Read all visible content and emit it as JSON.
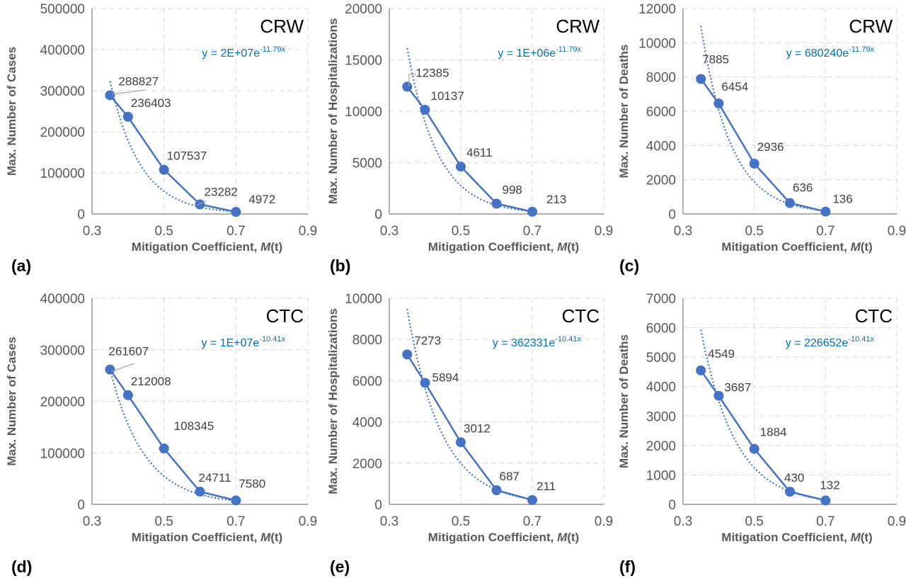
{
  "chart_data": [
    {
      "panel": "(a)",
      "type": "line",
      "corner_label": "CRW",
      "xlabel_pre": "Mitigation Coefficient, ",
      "xlabel_var": "M",
      "xlabel_post": "(t)",
      "ylabel": "Max. Number of Cases",
      "x": [
        0.35,
        0.4,
        0.5,
        0.6,
        0.7
      ],
      "values": [
        288827,
        236403,
        107537,
        23282,
        4972
      ],
      "labels": [
        "288827",
        "236403",
        "107537",
        "23282",
        "4972"
      ],
      "xlim": [
        0.3,
        0.9
      ],
      "xticks": [
        "0.3",
        "0.5",
        "0.7",
        "0.9"
      ],
      "ylim": [
        0,
        500000
      ],
      "yticks": [
        "0",
        "100000",
        "200000",
        "300000",
        "400000",
        "500000"
      ],
      "trendline": {
        "type": "exponential",
        "a": 20000000,
        "b": -11.79,
        "equation_main": "y = 2E+07e",
        "equation_exp": "-11.79x"
      },
      "grid": true
    },
    {
      "panel": "(b)",
      "type": "line",
      "corner_label": "CRW",
      "xlabel_pre": "Mitigation Coefficient, ",
      "xlabel_var": "M",
      "xlabel_post": "(t)",
      "ylabel": "Max. Number of Hospitalizations",
      "x": [
        0.35,
        0.4,
        0.5,
        0.6,
        0.7
      ],
      "values": [
        12385,
        10137,
        4611,
        998,
        213
      ],
      "labels": [
        "12385",
        "10137",
        "4611",
        "998",
        "213"
      ],
      "xlim": [
        0.3,
        0.9
      ],
      "xticks": [
        "0.3",
        "0.5",
        "0.7",
        "0.9"
      ],
      "ylim": [
        0,
        20000
      ],
      "yticks": [
        "0",
        "5000",
        "10000",
        "15000",
        "20000"
      ],
      "trendline": {
        "type": "exponential",
        "a": 1000000,
        "b": -11.79,
        "equation_main": "y = 1E+06e",
        "equation_exp": "-11.79x"
      },
      "grid": true
    },
    {
      "panel": "(c)",
      "type": "line",
      "corner_label": "CRW",
      "xlabel_pre": "Mitigation Coefficient, ",
      "xlabel_var": "M",
      "xlabel_post": "(t)",
      "ylabel": "Max. Number of Deaths",
      "x": [
        0.35,
        0.4,
        0.5,
        0.6,
        0.7
      ],
      "values": [
        7885,
        6454,
        2936,
        636,
        136
      ],
      "labels": [
        "7885",
        "6454",
        "2936",
        "636",
        "136"
      ],
      "xlim": [
        0.3,
        0.9
      ],
      "xticks": [
        "0.3",
        "0.5",
        "0.7",
        "0.9"
      ],
      "ylim": [
        0,
        12000
      ],
      "yticks": [
        "0",
        "2000",
        "4000",
        "6000",
        "8000",
        "10000",
        "12000"
      ],
      "trendline": {
        "type": "exponential",
        "a": 680240,
        "b": -11.79,
        "equation_main": "y = 680240e",
        "equation_exp": "-11.79x"
      },
      "grid": true
    },
    {
      "panel": "(d)",
      "type": "line",
      "corner_label": "CTC",
      "xlabel_pre": "Mitigation Coefficient, ",
      "xlabel_var": "M",
      "xlabel_post": "(t)",
      "ylabel": "Max. Number of Cases",
      "x": [
        0.35,
        0.4,
        0.5,
        0.6,
        0.7
      ],
      "values": [
        261607,
        212008,
        108345,
        24711,
        7580
      ],
      "labels": [
        "261607",
        "212008",
        "108345",
        "24711",
        "7580"
      ],
      "xlim": [
        0.3,
        0.9
      ],
      "xticks": [
        "0.3",
        "0.5",
        "0.7",
        "0.9"
      ],
      "ylim": [
        0,
        400000
      ],
      "yticks": [
        "0",
        "100000",
        "200000",
        "300000",
        "400000"
      ],
      "trendline": {
        "type": "exponential",
        "a": 10000000,
        "b": -10.41,
        "equation_main": "y = 1E+07e",
        "equation_exp": "-10.41x"
      },
      "grid": true
    },
    {
      "panel": "(e)",
      "type": "line",
      "corner_label": "CTC",
      "xlabel_pre": "Mitigation Coefficient, ",
      "xlabel_var": "M",
      "xlabel_post": "(t)",
      "ylabel": "Max. Number of Hospitalizations",
      "x": [
        0.35,
        0.4,
        0.5,
        0.6,
        0.7
      ],
      "values": [
        7273,
        5894,
        3012,
        687,
        211
      ],
      "labels": [
        "7273",
        "5894",
        "3012",
        "687",
        "211"
      ],
      "xlim": [
        0.3,
        0.9
      ],
      "xticks": [
        "0.3",
        "0.5",
        "0.7",
        "0.9"
      ],
      "ylim": [
        0,
        10000
      ],
      "yticks": [
        "0",
        "2000",
        "4000",
        "6000",
        "8000",
        "10000"
      ],
      "trendline": {
        "type": "exponential",
        "a": 362331,
        "b": -10.41,
        "equation_main": "y = 362331e",
        "equation_exp": "-10.41x"
      },
      "grid": true
    },
    {
      "panel": "(f)",
      "type": "line",
      "corner_label": "CTC",
      "xlabel_pre": "Mitigation Coefficient, ",
      "xlabel_var": "M",
      "xlabel_post": "(t)",
      "ylabel": "Max. Number of Deaths",
      "x": [
        0.35,
        0.4,
        0.5,
        0.6,
        0.7
      ],
      "values": [
        4549,
        3687,
        1884,
        430,
        132
      ],
      "labels": [
        "4549",
        "3687",
        "1884",
        "430",
        "132"
      ],
      "xlim": [
        0.3,
        0.9
      ],
      "xticks": [
        "0.3",
        "0.5",
        "0.7",
        "0.9"
      ],
      "ylim": [
        0,
        7000
      ],
      "yticks": [
        "0",
        "1000",
        "2000",
        "3000",
        "4000",
        "5000",
        "6000",
        "7000"
      ],
      "trendline": {
        "type": "exponential",
        "a": 226652,
        "b": -10.41,
        "equation_main": "y = 226652e",
        "equation_exp": "-10.41x"
      },
      "grid": true
    }
  ],
  "colors": {
    "series": "#4472c4",
    "equation": "#0070c0",
    "grid": "#d9d9d9",
    "axis": "#7f7f7f"
  }
}
